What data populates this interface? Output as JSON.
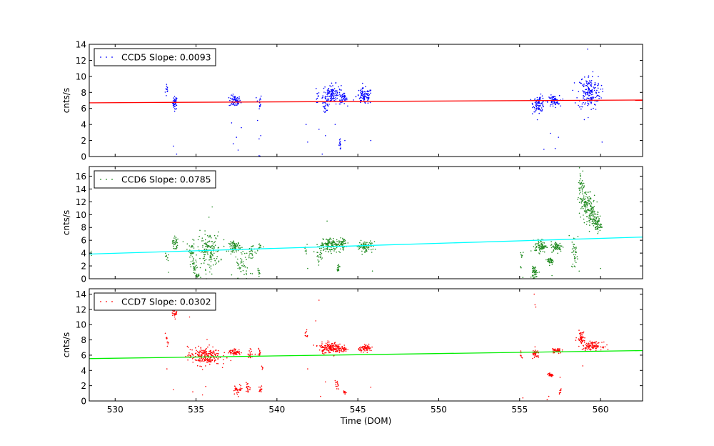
{
  "chart_data": [
    {
      "type": "scatter",
      "panel": "top",
      "ylabel": "cnts/s",
      "xlim": [
        528.4,
        562.6
      ],
      "ylim": [
        0,
        14
      ],
      "yticks": [
        0,
        2,
        4,
        6,
        8,
        10,
        12,
        14
      ],
      "legend": {
        "label": "CCD5 Slope: 0.0093",
        "location": "top-left"
      },
      "point_color": "#0000ff",
      "trend": {
        "color": "#ff0000",
        "x": [
          528.4,
          562.6
        ],
        "y": [
          6.7,
          7.05
        ]
      },
      "clusters": [
        {
          "x": 533.2,
          "y": 8.3,
          "sx": 0.05,
          "sy": 0.5,
          "n": 12
        },
        {
          "x": 533.7,
          "y": 6.7,
          "sx": 0.07,
          "sy": 0.4,
          "n": 40
        },
        {
          "x": 537.4,
          "y": 6.9,
          "sx": 0.18,
          "sy": 0.35,
          "n": 70
        },
        {
          "x": 538.9,
          "y": 6.8,
          "sx": 0.08,
          "sy": 0.5,
          "n": 14
        },
        {
          "x": 542.5,
          "y": 7.3,
          "sx": 0.05,
          "sy": 0.5,
          "n": 10
        },
        {
          "x": 543.4,
          "y": 7.8,
          "sx": 0.28,
          "sy": 0.6,
          "n": 130
        },
        {
          "x": 543.0,
          "y": 6.3,
          "sx": 0.1,
          "sy": 0.3,
          "n": 20
        },
        {
          "x": 543.9,
          "y": 1.5,
          "sx": 0.04,
          "sy": 0.3,
          "n": 14
        },
        {
          "x": 544.1,
          "y": 7.2,
          "sx": 0.12,
          "sy": 0.35,
          "n": 40
        },
        {
          "x": 545.4,
          "y": 7.5,
          "sx": 0.25,
          "sy": 0.5,
          "n": 90
        },
        {
          "x": 556.2,
          "y": 6.6,
          "sx": 0.18,
          "sy": 0.5,
          "n": 90
        },
        {
          "x": 557.1,
          "y": 6.9,
          "sx": 0.18,
          "sy": 0.35,
          "n": 70
        },
        {
          "x": 559.3,
          "y": 8.0,
          "sx": 0.35,
          "sy": 1.1,
          "n": 180
        }
      ],
      "outliers": [
        [
          533.6,
          1.3
        ],
        [
          533.8,
          0.3
        ],
        [
          537.2,
          4.2
        ],
        [
          537.3,
          1.6
        ],
        [
          537.5,
          2.4
        ],
        [
          537.6,
          0.8
        ],
        [
          537.8,
          3.6
        ],
        [
          538.8,
          4.5
        ],
        [
          538.9,
          2.2
        ],
        [
          539.0,
          2.6
        ],
        [
          538.9,
          0.1
        ],
        [
          538.95,
          0.05
        ],
        [
          541.8,
          4.0
        ],
        [
          541.9,
          1.8
        ],
        [
          542.6,
          3.4
        ],
        [
          542.8,
          0.3
        ],
        [
          543.0,
          2.6
        ],
        [
          543.6,
          4.0
        ],
        [
          544.2,
          2.0
        ],
        [
          545.8,
          2.0
        ],
        [
          556.5,
          0.9
        ],
        [
          556.9,
          2.9
        ],
        [
          557.2,
          1.0
        ],
        [
          557.4,
          2.4
        ],
        [
          559.0,
          4.6
        ],
        [
          560.1,
          1.8
        ],
        [
          559.2,
          13.4
        ]
      ]
    },
    {
      "type": "scatter",
      "panel": "middle",
      "ylabel": "cnts/s",
      "xlim": [
        528.4,
        562.6
      ],
      "ylim": [
        0,
        17.5
      ],
      "yticks": [
        0,
        2,
        4,
        6,
        8,
        10,
        12,
        14,
        16
      ],
      "legend": {
        "label": "CCD6 Slope: 0.0785",
        "location": "top-left"
      },
      "point_color": "#228b22",
      "trend": {
        "color": "#00ffff",
        "x": [
          528.4,
          562.6
        ],
        "y": [
          3.85,
          6.5
        ]
      },
      "clusters": [
        {
          "x": 528.5,
          "y": 4.0,
          "sx": 0.03,
          "sy": 0.2,
          "n": 4
        },
        {
          "x": 533.2,
          "y": 3.4,
          "sx": 0.05,
          "sy": 0.3,
          "n": 8
        },
        {
          "x": 533.7,
          "y": 5.6,
          "sx": 0.08,
          "sy": 0.6,
          "n": 35
        },
        {
          "x": 534.7,
          "y": 4.2,
          "sx": 0.12,
          "sy": 0.9,
          "n": 30
        },
        {
          "x": 534.9,
          "y": 1.8,
          "sx": 0.1,
          "sy": 0.6,
          "n": 25
        },
        {
          "x": 535.1,
          "y": 0.4,
          "sx": 0.08,
          "sy": 0.2,
          "n": 15
        },
        {
          "x": 535.8,
          "y": 4.4,
          "sx": 0.35,
          "sy": 1.4,
          "n": 150
        },
        {
          "x": 537.4,
          "y": 5.0,
          "sx": 0.18,
          "sy": 0.4,
          "n": 70
        },
        {
          "x": 537.9,
          "y": 2.0,
          "sx": 0.25,
          "sy": 1.2,
          "n": 45
        },
        {
          "x": 538.4,
          "y": 4.2,
          "sx": 0.15,
          "sy": 0.7,
          "n": 25
        },
        {
          "x": 538.9,
          "y": 5.0,
          "sx": 0.08,
          "sy": 0.5,
          "n": 14
        },
        {
          "x": 538.9,
          "y": 1.0,
          "sx": 0.05,
          "sy": 0.3,
          "n": 10
        },
        {
          "x": 541.8,
          "y": 4.8,
          "sx": 0.05,
          "sy": 0.5,
          "n": 8
        },
        {
          "x": 543.3,
          "y": 5.3,
          "sx": 0.32,
          "sy": 0.5,
          "n": 150
        },
        {
          "x": 542.6,
          "y": 3.5,
          "sx": 0.1,
          "sy": 0.6,
          "n": 20
        },
        {
          "x": 543.8,
          "y": 1.6,
          "sx": 0.05,
          "sy": 0.3,
          "n": 16
        },
        {
          "x": 544.1,
          "y": 5.4,
          "sx": 0.12,
          "sy": 0.5,
          "n": 40
        },
        {
          "x": 545.4,
          "y": 5.0,
          "sx": 0.25,
          "sy": 0.4,
          "n": 90
        },
        {
          "x": 555.1,
          "y": 3.4,
          "sx": 0.05,
          "sy": 0.8,
          "n": 10
        },
        {
          "x": 555.9,
          "y": 1.0,
          "sx": 0.1,
          "sy": 0.5,
          "n": 50
        },
        {
          "x": 556.3,
          "y": 5.1,
          "sx": 0.18,
          "sy": 0.5,
          "n": 80
        },
        {
          "x": 556.9,
          "y": 2.8,
          "sx": 0.1,
          "sy": 0.3,
          "n": 40
        },
        {
          "x": 557.3,
          "y": 5.0,
          "sx": 0.18,
          "sy": 0.4,
          "n": 70
        },
        {
          "x": 558.4,
          "y": 4.0,
          "sx": 0.1,
          "sy": 1.3,
          "n": 35
        },
        {
          "x": 558.8,
          "y": 14.5,
          "sx": 0.1,
          "sy": 1.2,
          "n": 35
        },
        {
          "x": 559.1,
          "y": 12.0,
          "sx": 0.22,
          "sy": 1.0,
          "n": 100
        },
        {
          "x": 559.5,
          "y": 9.8,
          "sx": 0.18,
          "sy": 0.8,
          "n": 90
        },
        {
          "x": 559.8,
          "y": 8.4,
          "sx": 0.12,
          "sy": 0.6,
          "n": 60
        }
      ],
      "outliers": [
        [
          536.0,
          11.2
        ],
        [
          535.8,
          9.6
        ],
        [
          533.3,
          1.0
        ],
        [
          534.2,
          5.8
        ],
        [
          537.2,
          0.6
        ],
        [
          541.9,
          1.6
        ],
        [
          543.1,
          9.0
        ],
        [
          545.9,
          1.2
        ],
        [
          558.6,
          6.6
        ],
        [
          560.0,
          1.6
        ],
        [
          558.7,
          17.3
        ],
        [
          558.9,
          16.8
        ],
        [
          557.0,
          0.5
        ],
        [
          555.2,
          0.2
        ]
      ]
    },
    {
      "type": "scatter",
      "panel": "bottom",
      "ylabel": "cnts/s",
      "xlabel": "Time (DOM)",
      "xlim": [
        528.4,
        562.6
      ],
      "ylim": [
        0,
        14.7
      ],
      "yticks": [
        0,
        2,
        4,
        6,
        8,
        10,
        12,
        14
      ],
      "xticks": [
        530,
        535,
        540,
        545,
        550,
        555,
        560
      ],
      "legend": {
        "label": "CCD7 Slope: 0.0302",
        "location": "top-left"
      },
      "point_color": "#ff0000",
      "trend": {
        "color": "#00ee00",
        "x": [
          528.4,
          562.6
        ],
        "y": [
          5.55,
          6.6
        ]
      },
      "clusters": [
        {
          "x": 533.2,
          "y": 7.8,
          "sx": 0.05,
          "sy": 0.3,
          "n": 10
        },
        {
          "x": 533.7,
          "y": 11.5,
          "sx": 0.08,
          "sy": 0.3,
          "n": 25
        },
        {
          "x": 535.5,
          "y": 5.9,
          "sx": 0.5,
          "sy": 0.6,
          "n": 220
        },
        {
          "x": 537.4,
          "y": 6.4,
          "sx": 0.18,
          "sy": 0.2,
          "n": 60
        },
        {
          "x": 537.6,
          "y": 1.5,
          "sx": 0.15,
          "sy": 0.3,
          "n": 30
        },
        {
          "x": 538.2,
          "y": 1.7,
          "sx": 0.08,
          "sy": 0.4,
          "n": 20
        },
        {
          "x": 538.4,
          "y": 6.2,
          "sx": 0.1,
          "sy": 0.3,
          "n": 20
        },
        {
          "x": 538.9,
          "y": 6.4,
          "sx": 0.06,
          "sy": 0.3,
          "n": 12
        },
        {
          "x": 539.0,
          "y": 1.4,
          "sx": 0.05,
          "sy": 0.3,
          "n": 14
        },
        {
          "x": 539.1,
          "y": 4.3,
          "sx": 0.03,
          "sy": 0.2,
          "n": 6
        },
        {
          "x": 541.8,
          "y": 8.8,
          "sx": 0.05,
          "sy": 0.4,
          "n": 10
        },
        {
          "x": 543.3,
          "y": 7.0,
          "sx": 0.35,
          "sy": 0.35,
          "n": 170
        },
        {
          "x": 543.7,
          "y": 2.0,
          "sx": 0.05,
          "sy": 0.3,
          "n": 14
        },
        {
          "x": 544.2,
          "y": 1.1,
          "sx": 0.05,
          "sy": 0.2,
          "n": 12
        },
        {
          "x": 544.1,
          "y": 6.7,
          "sx": 0.12,
          "sy": 0.2,
          "n": 30
        },
        {
          "x": 545.5,
          "y": 6.9,
          "sx": 0.22,
          "sy": 0.2,
          "n": 70
        },
        {
          "x": 555.1,
          "y": 5.8,
          "sx": 0.04,
          "sy": 0.3,
          "n": 8
        },
        {
          "x": 556.0,
          "y": 6.1,
          "sx": 0.12,
          "sy": 0.3,
          "n": 40
        },
        {
          "x": 556.9,
          "y": 3.4,
          "sx": 0.1,
          "sy": 0.1,
          "n": 30
        },
        {
          "x": 557.3,
          "y": 6.6,
          "sx": 0.15,
          "sy": 0.2,
          "n": 45
        },
        {
          "x": 557.5,
          "y": 1.2,
          "sx": 0.05,
          "sy": 0.2,
          "n": 8
        },
        {
          "x": 558.8,
          "y": 8.4,
          "sx": 0.12,
          "sy": 0.4,
          "n": 50
        },
        {
          "x": 559.5,
          "y": 7.2,
          "sx": 0.3,
          "sy": 0.25,
          "n": 110
        }
      ],
      "outliers": [
        [
          533.2,
          4.2
        ],
        [
          533.6,
          1.5
        ],
        [
          534.6,
          11.0
        ],
        [
          534.8,
          1.2
        ],
        [
          535.4,
          0.8
        ],
        [
          535.6,
          1.9
        ],
        [
          542.6,
          13.2
        ],
        [
          542.4,
          10.5
        ],
        [
          542.7,
          0.6
        ],
        [
          541.9,
          4.2
        ],
        [
          543.0,
          2.5
        ],
        [
          545.8,
          1.8
        ],
        [
          555.9,
          14.0
        ],
        [
          555.95,
          12.6
        ],
        [
          556.0,
          12.3
        ],
        [
          556.8,
          0.6
        ],
        [
          556.7,
          0.2
        ],
        [
          557.5,
          3.1
        ],
        [
          558.9,
          4.6
        ],
        [
          555.2,
          0.4
        ]
      ]
    }
  ]
}
